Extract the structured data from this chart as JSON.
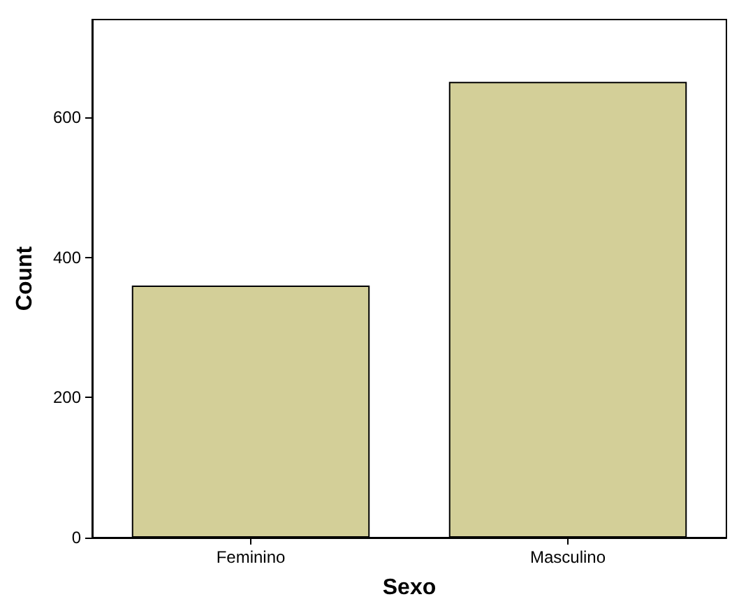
{
  "chart_data": {
    "type": "bar",
    "xlabel": "Sexo",
    "ylabel": "Count",
    "categories": [
      "Feminino",
      "Masculino"
    ],
    "values": [
      360,
      651
    ],
    "color": "#d3cf98",
    "ylim": [
      0,
      740
    ],
    "yticks": [
      0,
      200,
      400,
      600
    ],
    "grid": false
  }
}
